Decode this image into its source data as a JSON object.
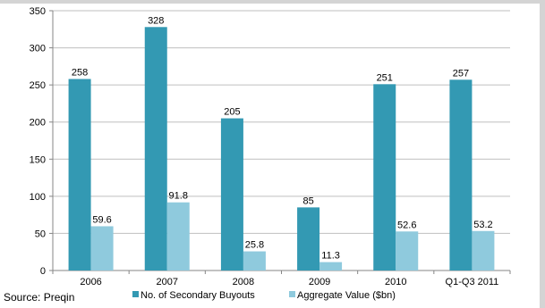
{
  "chart_data": {
    "type": "bar",
    "categories": [
      "2006",
      "2007",
      "2008",
      "2009",
      "2010",
      "Q1-Q3 2011"
    ],
    "series": [
      {
        "name": "No. of Secondary Buyouts",
        "values": [
          258,
          328,
          205,
          85,
          251,
          257
        ],
        "color": "#3399b3"
      },
      {
        "name": "Aggregate Value ($bn)",
        "values": [
          59.6,
          91.8,
          25.8,
          11.3,
          52.6,
          53.2
        ],
        "color": "#8fcadd"
      }
    ],
    "data_labels": [
      [
        "258",
        "328",
        "205",
        "85",
        "251",
        "257"
      ],
      [
        "59.6",
        "91.8",
        "25.8",
        "11.3",
        "52.6",
        "53.2"
      ]
    ],
    "y_ticks": [
      "0",
      "50",
      "100",
      "150",
      "200",
      "250",
      "300",
      "350"
    ],
    "ylim": [
      0,
      350
    ],
    "grid": "horizontal",
    "legend_position": "bottom"
  },
  "source": "Source: Preqin"
}
